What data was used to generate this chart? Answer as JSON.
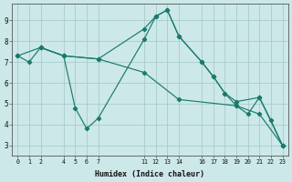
{
  "xlabel": "Humidex (Indice chaleur)",
  "xlim": [
    -0.5,
    23.5
  ],
  "ylim": [
    2.5,
    9.8
  ],
  "xticks": [
    0,
    1,
    2,
    4,
    5,
    6,
    7,
    11,
    12,
    13,
    14,
    16,
    17,
    18,
    19,
    20,
    21,
    22,
    23
  ],
  "yticks": [
    3,
    4,
    5,
    6,
    7,
    8,
    9
  ],
  "bg_color": "#cce8e8",
  "line_color": "#1a7a6e",
  "grid_color": "#aacccc",
  "series": [
    {
      "x": [
        0,
        1,
        2,
        4,
        7,
        11,
        12,
        13,
        14,
        16,
        17,
        18,
        19,
        20,
        21,
        22,
        23
      ],
      "y": [
        7.3,
        7.0,
        7.7,
        7.3,
        7.15,
        8.6,
        9.2,
        9.5,
        8.25,
        7.0,
        6.3,
        5.5,
        4.9,
        4.5,
        5.3,
        4.2,
        3.0
      ]
    },
    {
      "x": [
        2,
        4,
        5,
        6,
        7,
        11,
        12,
        13,
        14,
        16,
        17,
        18,
        19,
        21,
        23
      ],
      "y": [
        7.7,
        7.3,
        4.8,
        3.8,
        4.3,
        8.1,
        9.2,
        9.5,
        8.25,
        7.0,
        6.3,
        5.5,
        5.1,
        5.3,
        3.0
      ]
    },
    {
      "x": [
        0,
        2,
        4,
        7,
        11,
        14,
        19,
        21,
        23
      ],
      "y": [
        7.3,
        7.7,
        7.3,
        7.15,
        6.5,
        5.2,
        4.9,
        4.5,
        3.0
      ]
    }
  ]
}
